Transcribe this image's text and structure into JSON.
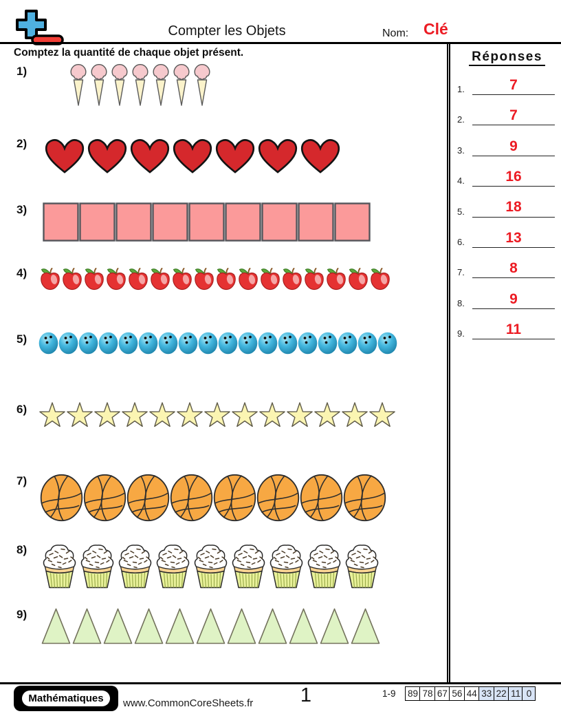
{
  "header": {
    "title": "Compter les Objets",
    "name_label": "Nom:",
    "name_value": "Clé",
    "logo_icon": "plus-minus-logo-icon"
  },
  "instruction": "Comptez la quantité de chaque objet présent.",
  "problems": [
    {
      "num": "1)",
      "type": "ice-cream",
      "icon": "ice-cream-cone-icon",
      "count": 7
    },
    {
      "num": "2)",
      "type": "heart",
      "icon": "heart-icon",
      "count": 7
    },
    {
      "num": "3)",
      "type": "square",
      "icon": "pink-square-icon",
      "count": 9
    },
    {
      "num": "4)",
      "type": "apple",
      "icon": "apple-icon",
      "count": 16
    },
    {
      "num": "5)",
      "type": "bowling-ball",
      "icon": "bowling-ball-icon",
      "count": 18
    },
    {
      "num": "6)",
      "type": "star",
      "icon": "star-icon",
      "count": 13
    },
    {
      "num": "7)",
      "type": "basketball",
      "icon": "basketball-icon",
      "count": 8
    },
    {
      "num": "8)",
      "type": "cupcake",
      "icon": "cupcake-icon",
      "count": 9
    },
    {
      "num": "9)",
      "type": "triangle",
      "icon": "triangle-icon",
      "count": 11
    }
  ],
  "answers": {
    "heading": "Réponses",
    "items": [
      {
        "num": "1.",
        "value": "7"
      },
      {
        "num": "2.",
        "value": "7"
      },
      {
        "num": "3.",
        "value": "9"
      },
      {
        "num": "4.",
        "value": "16"
      },
      {
        "num": "5.",
        "value": "18"
      },
      {
        "num": "6.",
        "value": "13"
      },
      {
        "num": "7.",
        "value": "8"
      },
      {
        "num": "8.",
        "value": "9"
      },
      {
        "num": "9.",
        "value": "11"
      }
    ]
  },
  "footer": {
    "brand": "Mathématiques",
    "website": "www.CommonCoreSheets.fr",
    "page_number": "1",
    "score_label": "1-9",
    "score_cells": [
      {
        "value": "89",
        "highlight": false
      },
      {
        "value": "78",
        "highlight": false
      },
      {
        "value": "67",
        "highlight": false
      },
      {
        "value": "56",
        "highlight": false
      },
      {
        "value": "44",
        "highlight": false
      },
      {
        "value": "33",
        "highlight": true
      },
      {
        "value": "22",
        "highlight": true
      },
      {
        "value": "11",
        "highlight": true
      },
      {
        "value": "0",
        "highlight": true
      }
    ]
  },
  "colors": {
    "answer_red": "#EC1B23",
    "logo_blue": "#4FB0E0",
    "logo_red": "#F23E36",
    "score_highlight": "#D8E4F6"
  }
}
